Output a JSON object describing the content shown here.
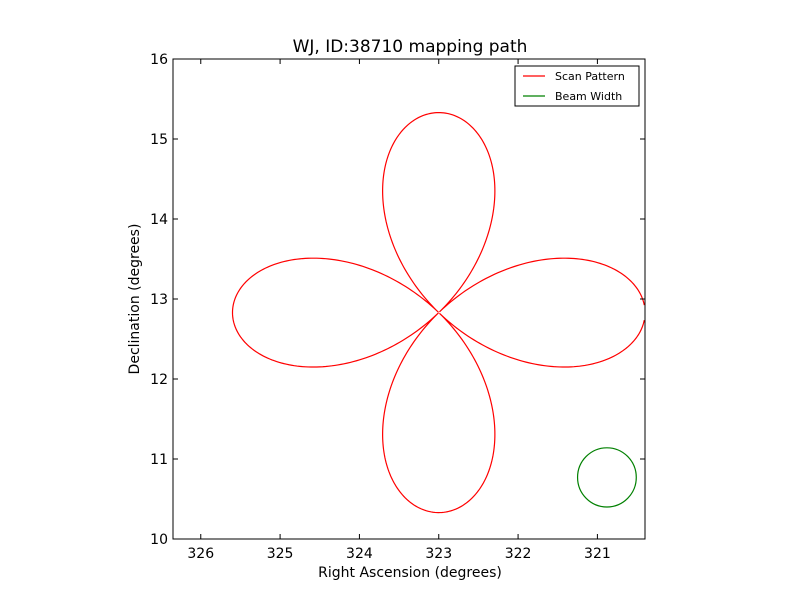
{
  "chart_data": {
    "type": "line",
    "title": "WJ, ID:38710 mapping path",
    "xlabel": "Right Ascension (degrees)",
    "ylabel": "Declination (degrees)",
    "xlim": [
      326.35,
      320.4
    ],
    "ylim": [
      10,
      16
    ],
    "x_ticks": [
      326,
      325,
      324,
      323,
      322,
      321
    ],
    "y_ticks": [
      10,
      11,
      12,
      13,
      14,
      15,
      16
    ],
    "x_tick_labels": [
      "326",
      "325",
      "324",
      "323",
      "322",
      "321"
    ],
    "y_tick_labels": [
      "10",
      "11",
      "12",
      "13",
      "14",
      "15",
      "16"
    ],
    "grid": false,
    "legend_position": "top-right",
    "series": [
      {
        "name": "Scan Pattern",
        "color": "#ff0000",
        "shape": "four-petal rose curve",
        "center": [
          323.0,
          12.83
        ],
        "petal_extent_ra_deg": 2.6,
        "petal_extent_dec_deg": 2.5,
        "ra_extremes": [
          325.6,
          320.4
        ],
        "dec_extremes": [
          10.33,
          15.35
        ]
      },
      {
        "name": "Beam Width",
        "color": "#008000",
        "shape": "circle",
        "center": [
          320.88,
          10.77
        ],
        "radius_deg": 0.37
      }
    ]
  }
}
